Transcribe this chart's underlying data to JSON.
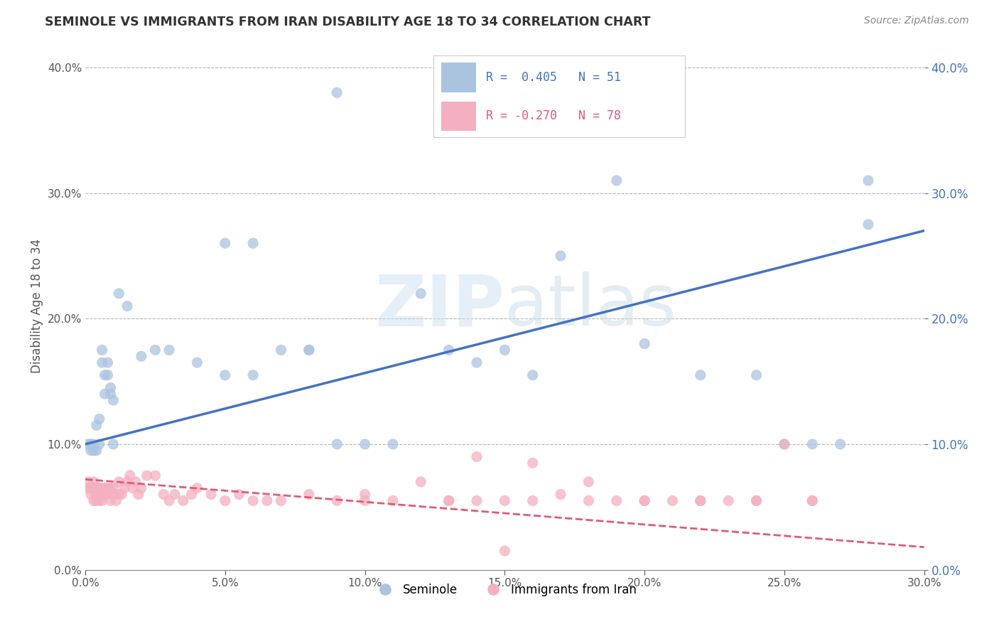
{
  "title": "SEMINOLE VS IMMIGRANTS FROM IRAN DISABILITY AGE 18 TO 34 CORRELATION CHART",
  "source": "Source: ZipAtlas.com",
  "xlim": [
    0.0,
    0.3
  ],
  "ylim": [
    0.0,
    0.42
  ],
  "watermark": "ZIPatlas",
  "legend_R1": "R =  0.405",
  "legend_N1": "N = 51",
  "legend_R2": "R = -0.270",
  "legend_N2": "N = 78",
  "color_blue": "#aac4e0",
  "color_pink": "#f4afc0",
  "color_line_blue": "#4472c4",
  "color_line_pink": "#e05a7a",
  "ylabel": "Disability Age 18 to 34",
  "legend_label1": "Seminole",
  "legend_label2": "Immigrants from Iran",
  "blue_x": [
    0.001,
    0.002,
    0.002,
    0.003,
    0.003,
    0.004,
    0.004,
    0.005,
    0.005,
    0.006,
    0.006,
    0.007,
    0.007,
    0.008,
    0.008,
    0.009,
    0.009,
    0.01,
    0.01,
    0.012,
    0.015,
    0.02,
    0.025,
    0.03,
    0.04,
    0.05,
    0.06,
    0.07,
    0.08,
    0.09,
    0.1,
    0.11,
    0.12,
    0.13,
    0.14,
    0.15,
    0.16,
    0.17,
    0.19,
    0.2,
    0.22,
    0.24,
    0.25,
    0.26,
    0.27,
    0.28,
    0.05,
    0.06,
    0.08,
    0.09,
    0.28
  ],
  "blue_y": [
    0.1,
    0.095,
    0.1,
    0.095,
    0.1,
    0.095,
    0.115,
    0.12,
    0.1,
    0.165,
    0.175,
    0.14,
    0.155,
    0.155,
    0.165,
    0.145,
    0.14,
    0.135,
    0.1,
    0.22,
    0.21,
    0.17,
    0.175,
    0.175,
    0.165,
    0.155,
    0.155,
    0.175,
    0.175,
    0.1,
    0.1,
    0.1,
    0.22,
    0.175,
    0.165,
    0.175,
    0.155,
    0.25,
    0.31,
    0.18,
    0.155,
    0.155,
    0.1,
    0.1,
    0.1,
    0.31,
    0.26,
    0.26,
    0.175,
    0.38,
    0.275
  ],
  "pink_x": [
    0.001,
    0.001,
    0.002,
    0.002,
    0.003,
    0.003,
    0.003,
    0.004,
    0.004,
    0.004,
    0.005,
    0.005,
    0.005,
    0.006,
    0.006,
    0.006,
    0.007,
    0.007,
    0.008,
    0.008,
    0.009,
    0.009,
    0.01,
    0.01,
    0.011,
    0.012,
    0.012,
    0.013,
    0.014,
    0.015,
    0.016,
    0.017,
    0.018,
    0.019,
    0.02,
    0.022,
    0.025,
    0.028,
    0.03,
    0.032,
    0.035,
    0.038,
    0.04,
    0.045,
    0.05,
    0.055,
    0.06,
    0.065,
    0.07,
    0.08,
    0.09,
    0.1,
    0.11,
    0.12,
    0.13,
    0.14,
    0.16,
    0.18,
    0.2,
    0.22,
    0.24,
    0.26,
    0.13,
    0.15,
    0.17,
    0.19,
    0.21,
    0.23,
    0.14,
    0.16,
    0.18,
    0.2,
    0.22,
    0.24,
    0.26,
    0.15,
    0.25,
    0.1
  ],
  "pink_y": [
    0.065,
    0.07,
    0.06,
    0.065,
    0.055,
    0.065,
    0.07,
    0.055,
    0.06,
    0.065,
    0.055,
    0.06,
    0.065,
    0.055,
    0.06,
    0.065,
    0.06,
    0.065,
    0.06,
    0.065,
    0.055,
    0.065,
    0.06,
    0.065,
    0.055,
    0.06,
    0.07,
    0.06,
    0.065,
    0.07,
    0.075,
    0.065,
    0.07,
    0.06,
    0.065,
    0.075,
    0.075,
    0.06,
    0.055,
    0.06,
    0.055,
    0.06,
    0.065,
    0.06,
    0.055,
    0.06,
    0.055,
    0.055,
    0.055,
    0.06,
    0.055,
    0.06,
    0.055,
    0.07,
    0.055,
    0.055,
    0.055,
    0.055,
    0.055,
    0.055,
    0.055,
    0.055,
    0.055,
    0.055,
    0.06,
    0.055,
    0.055,
    0.055,
    0.09,
    0.085,
    0.07,
    0.055,
    0.055,
    0.055,
    0.055,
    0.015,
    0.1,
    0.055
  ],
  "blue_line_x0": 0.0,
  "blue_line_x1": 0.3,
  "blue_line_y0": 0.1,
  "blue_line_y1": 0.27,
  "pink_line_x0": 0.0,
  "pink_line_x1": 0.3,
  "pink_line_y0": 0.072,
  "pink_line_y1": 0.018
}
